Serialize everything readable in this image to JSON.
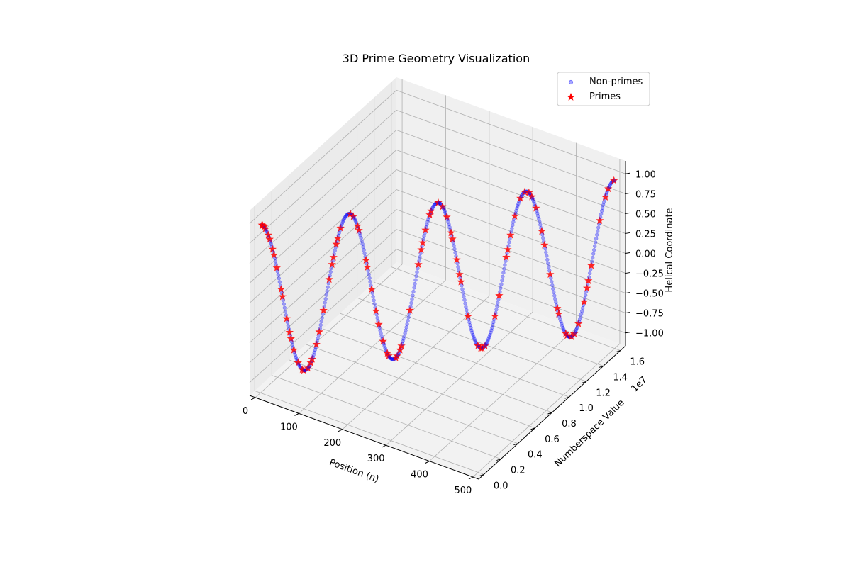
{
  "chart_data": {
    "type": "scatter",
    "projection": "3d",
    "title": "3D Prime Geometry Visualization",
    "xlabel": "Position (n)",
    "ylabel": "Numberspace Value",
    "zlabel": "Helical Coordinate",
    "xlim": [
      0,
      500
    ],
    "ylim": [
      0,
      1.6
    ],
    "zlim": [
      -1.0,
      1.0
    ],
    "x_ticks": [
      "0",
      "100",
      "200",
      "300",
      "400",
      "500"
    ],
    "y_ticks": [
      "0.0",
      "0.2",
      "0.4",
      "0.6",
      "0.8",
      "1.0",
      "1.2",
      "1.4",
      "1.6"
    ],
    "y_offset_label": "1e7",
    "z_ticks": [
      "−1.00",
      "−0.75",
      "−0.50",
      "−0.25",
      "0.00",
      "0.25",
      "0.50",
      "0.75",
      "1.00"
    ],
    "grid": true,
    "legend_position": "top-right",
    "legend": [
      "Non-primes",
      "Primes"
    ],
    "series": [
      {
        "name": "Non-primes",
        "marker": "circle",
        "color": "#0000ff",
        "opacity": 0.35,
        "n_points": 500
      },
      {
        "name": "Primes",
        "marker": "star",
        "color": "#ff0000",
        "opacity": 0.85
      }
    ]
  }
}
